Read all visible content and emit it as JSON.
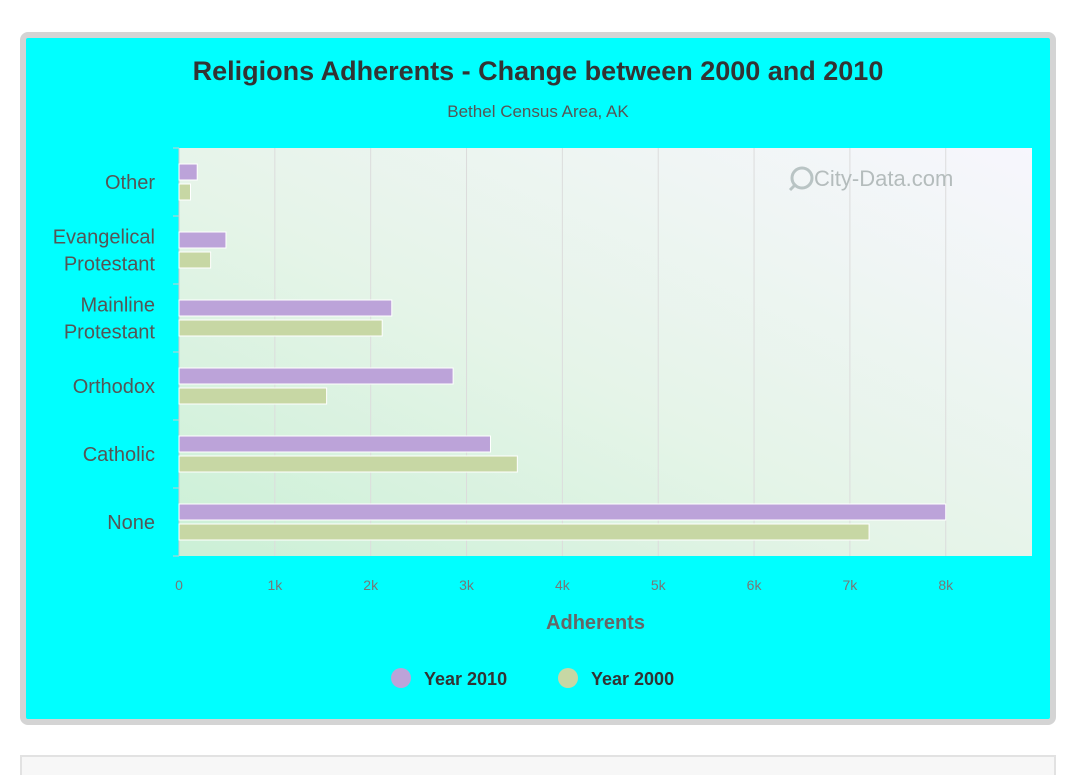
{
  "chart_data": {
    "type": "bar",
    "orientation": "horizontal",
    "title": "Religions Adherents - Change between 2000 and 2010",
    "subtitle": "Bethel Census Area, AK",
    "watermark": "City-Data.com",
    "xlabel": "Adherents",
    "ylabel": "",
    "categories": [
      [
        "Other"
      ],
      [
        "Evangelical",
        "Protestant"
      ],
      [
        "Mainline",
        "Protestant"
      ],
      [
        "Orthodox"
      ],
      [
        "Catholic"
      ],
      [
        "None"
      ]
    ],
    "series": [
      {
        "name": "Year 2010",
        "color": "#bca3d9",
        "values": [
          190,
          490,
          2220,
          2860,
          3250,
          8000
        ]
      },
      {
        "name": "Year 2000",
        "color": "#c7d7a4",
        "values": [
          120,
          330,
          2120,
          1540,
          3530,
          7200
        ]
      }
    ],
    "xlim": [
      0,
      8900
    ],
    "xticks": [
      {
        "value": 0,
        "label": "0"
      },
      {
        "value": 1000,
        "label": "1k"
      },
      {
        "value": 2000,
        "label": "2k"
      },
      {
        "value": 3000,
        "label": "3k"
      },
      {
        "value": 4000,
        "label": "4k"
      },
      {
        "value": 5000,
        "label": "5k"
      },
      {
        "value": 6000,
        "label": "6k"
      },
      {
        "value": 7000,
        "label": "7k"
      },
      {
        "value": 8000,
        "label": "8k"
      }
    ],
    "grid": true,
    "legend_position": "bottom-center"
  }
}
